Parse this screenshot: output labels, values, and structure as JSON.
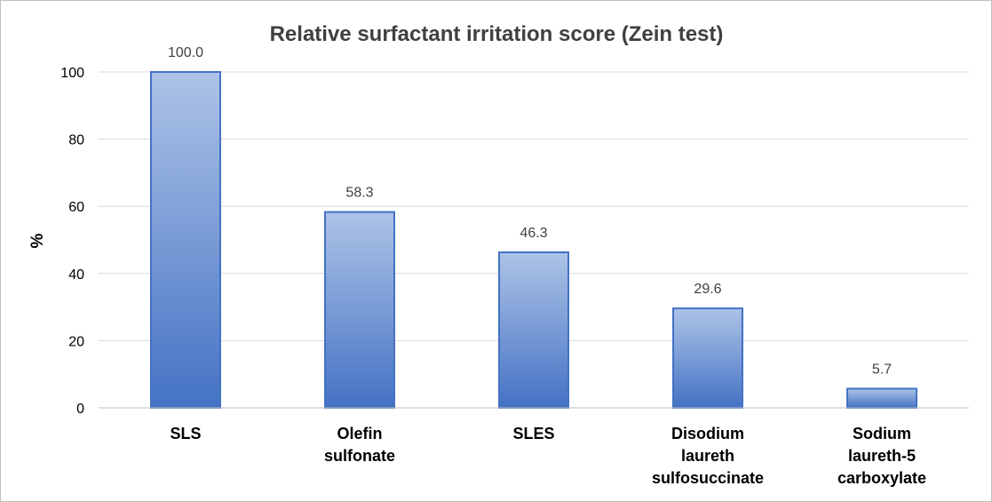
{
  "chart_data": {
    "type": "bar",
    "title": "Relative surfactant irritation score (Zein test)",
    "xlabel": "",
    "ylabel": "%",
    "ylim": [
      0,
      100
    ],
    "yticks": [
      0,
      20,
      40,
      60,
      80,
      100
    ],
    "grid": true,
    "legend": "none",
    "categories": [
      [
        "SLS"
      ],
      [
        "Olefin",
        "sulfonate"
      ],
      [
        "SLES"
      ],
      [
        "Disodium",
        "laureth",
        "sulfosuccinate"
      ],
      [
        "Sodium",
        "laureth-5",
        "carboxylate"
      ]
    ],
    "values": [
      100.0,
      58.3,
      46.3,
      29.6,
      5.7
    ],
    "data_labels": [
      "100.0",
      "58.3",
      "46.3",
      "29.6",
      "5.7"
    ],
    "colors": {
      "bar_top": "#adc3e7",
      "bar_bottom": "#4472c4",
      "bar_stroke": "#4472c4"
    }
  }
}
